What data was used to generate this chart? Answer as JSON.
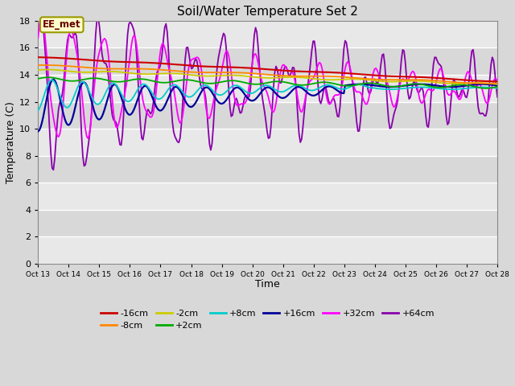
{
  "title": "Soil/Water Temperature Set 2",
  "xlabel": "Time",
  "ylabel": "Temperature (C)",
  "ylim": [
    0,
    18
  ],
  "yticks": [
    0,
    2,
    4,
    6,
    8,
    10,
    12,
    14,
    16,
    18
  ],
  "figure_bg": "#d8d8d8",
  "plot_bg_bands": [
    "#e8e8e8",
    "#d0d0d0"
  ],
  "grid_color": "#ffffff",
  "annotation_text": "EE_met",
  "annotation_box_color": "#ffffcc",
  "annotation_border_color": "#999900",
  "series_colors": {
    "-16cm": "#cc0000",
    "-8cm": "#ff8800",
    "-2cm": "#cccc00",
    "+2cm": "#00aa00",
    "+8cm": "#00cccc",
    "+16cm": "#000099",
    "+32cm": "#ff00ff",
    "+64cm": "#8800aa"
  },
  "legend_order": [
    "-16cm",
    "-8cm",
    "-2cm",
    "+2cm",
    "+8cm",
    "+16cm",
    "+32cm",
    "+64cm"
  ],
  "x_tick_labels": [
    "Oct 13",
    "Oct 14",
    "Oct 15",
    "Oct 16",
    "Oct 17",
    "Oct 18",
    "Oct 19",
    "Oct 20",
    "Oct 21",
    "Oct 22",
    "Oct 23",
    "Oct 24",
    "Oct 25",
    "Oct 26",
    "Oct 27",
    "Oct 28"
  ]
}
